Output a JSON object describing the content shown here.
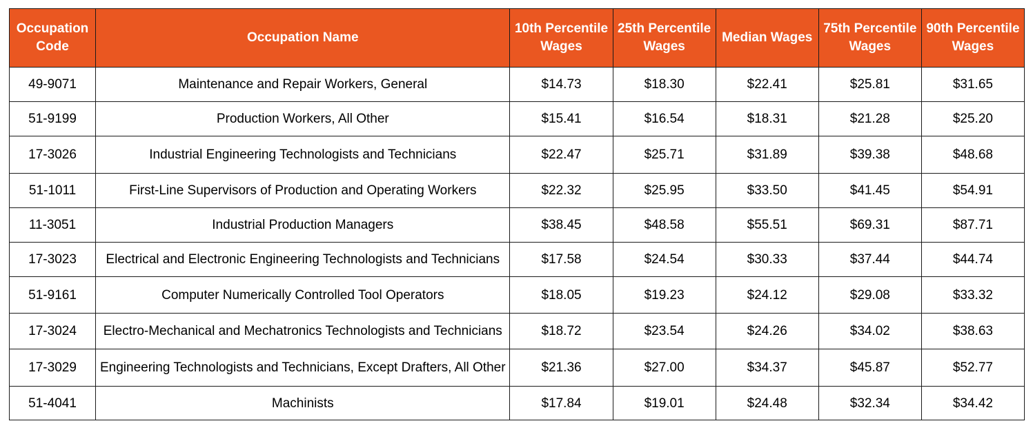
{
  "table": {
    "header_color": "#ea5721",
    "columns": [
      "Occupation Code",
      "Occupation Name",
      "10th Percentile Wages",
      "25th Percentile Wages",
      "Median Wages",
      "75th Percentile Wages",
      "90th Percentile Wages"
    ],
    "rows": [
      {
        "code": "49-9071",
        "name": "Maintenance and Repair Workers, General",
        "p10": "$14.73",
        "p25": "$18.30",
        "median": "$22.41",
        "p75": "$25.81",
        "p90": "$31.65"
      },
      {
        "code": "51-9199",
        "name": "Production Workers, All Other",
        "p10": "$15.41",
        "p25": "$16.54",
        "median": "$18.31",
        "p75": "$21.28",
        "p90": "$25.20"
      },
      {
        "code": "17-3026",
        "name": "Industrial Engineering Technologists and Technicians",
        "p10": "$22.47",
        "p25": "$25.71",
        "median": "$31.89",
        "p75": "$39.38",
        "p90": "$48.68"
      },
      {
        "code": "51-1011",
        "name": "First-Line Supervisors of Production and Operating Workers",
        "p10": "$22.32",
        "p25": "$25.95",
        "median": "$33.50",
        "p75": "$41.45",
        "p90": "$54.91"
      },
      {
        "code": "11-3051",
        "name": "Industrial Production Managers",
        "p10": "$38.45",
        "p25": "$48.58",
        "median": "$55.51",
        "p75": "$69.31",
        "p90": "$87.71"
      },
      {
        "code": "17-3023",
        "name": "Electrical and Electronic Engineering Technologists and Technicians",
        "p10": "$17.58",
        "p25": "$24.54",
        "median": "$30.33",
        "p75": "$37.44",
        "p90": "$44.74"
      },
      {
        "code": "51-9161",
        "name": "Computer Numerically Controlled Tool Operators",
        "p10": "$18.05",
        "p25": "$19.23",
        "median": "$24.12",
        "p75": "$29.08",
        "p90": "$33.32"
      },
      {
        "code": "17-3024",
        "name": "Electro-Mechanical and Mechatronics Technologists and Technicians",
        "p10": "$18.72",
        "p25": "$23.54",
        "median": "$24.26",
        "p75": "$34.02",
        "p90": "$38.63"
      },
      {
        "code": "17-3029",
        "name": "Engineering Technologists and Technicians, Except Drafters, All Other",
        "p10": "$21.36",
        "p25": "$27.00",
        "median": "$34.37",
        "p75": "$45.87",
        "p90": "$52.77"
      },
      {
        "code": "51-4041",
        "name": "Machinists",
        "p10": "$17.84",
        "p25": "$19.01",
        "median": "$24.48",
        "p75": "$32.34",
        "p90": "$34.42"
      }
    ]
  }
}
